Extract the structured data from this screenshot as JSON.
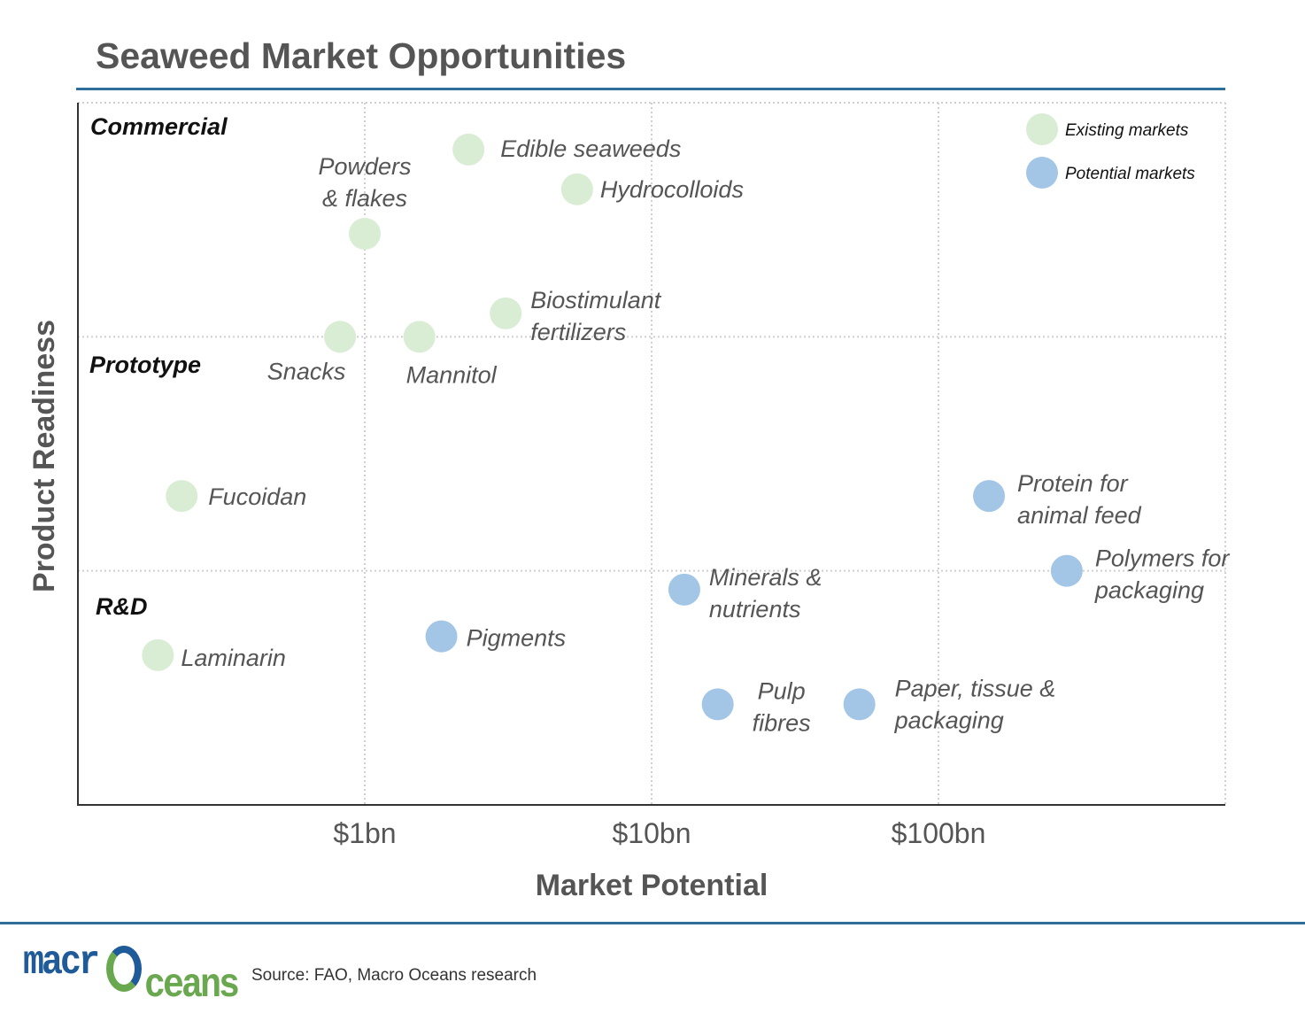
{
  "logo": {
    "part1": "macr",
    "part2": "ceans"
  },
  "source": "Source: FAO, Macro Oceans research",
  "chart_data": {
    "type": "scatter",
    "title": "Seaweed Market Opportunities",
    "xlabel": "Market Potential",
    "ylabel": "Product Readiness",
    "x_scale": "log",
    "x_ticks": [
      {
        "value": 1,
        "label": "$1bn"
      },
      {
        "value": 10,
        "label": "$10bn"
      },
      {
        "value": 100,
        "label": "$100bn"
      }
    ],
    "xlim": [
      0.1,
      1000
    ],
    "ylim": [
      0,
      3
    ],
    "bands": [
      {
        "label": "Commercial",
        "from": 2,
        "to": 3
      },
      {
        "label": "Prototype",
        "from": 1,
        "to": 2
      },
      {
        "label": "R&D",
        "from": 0,
        "to": 1
      }
    ],
    "grid": true,
    "legend": {
      "position": "top-right"
    },
    "colors": {
      "Existing markets": "#d9ecd4",
      "Potential markets": "#a4c6e6"
    },
    "series": [
      {
        "name": "Existing markets",
        "points": [
          {
            "label": "Edible seaweeds",
            "x": 2.3,
            "y": 2.8
          },
          {
            "label": "Hydrocolloids",
            "x": 5.5,
            "y": 2.63
          },
          {
            "label": "Powders & flakes",
            "lines": [
              "Powders",
              "& flakes"
            ],
            "x": 1.0,
            "y": 2.44
          },
          {
            "label": "Biostimulant fertilizers",
            "lines": [
              "Biostimulant",
              "fertilizers"
            ],
            "x": 3.1,
            "y": 2.1
          },
          {
            "label": "Snacks",
            "x": 0.82,
            "y": 2.0
          },
          {
            "label": "Mannitol",
            "x": 1.55,
            "y": 2.0
          },
          {
            "label": "Fucoidan",
            "x": 0.23,
            "y": 1.32
          },
          {
            "label": "Laminarin",
            "x": 0.19,
            "y": 0.64
          }
        ]
      },
      {
        "name": "Potential markets",
        "points": [
          {
            "label": "Protein for animal feed",
            "lines": [
              "Protein for",
              "animal feed"
            ],
            "x": 150,
            "y": 1.32
          },
          {
            "label": "Polymers for packaging",
            "lines": [
              "Polymers for",
              "packaging"
            ],
            "x": 280,
            "y": 1.0
          },
          {
            "label": "Minerals & nutrients",
            "lines": [
              "Minerals &",
              "nutrients"
            ],
            "x": 13,
            "y": 0.92
          },
          {
            "label": "Pigments",
            "x": 1.85,
            "y": 0.72
          },
          {
            "label": "Pulp fibres",
            "lines": [
              "Pulp",
              "fibres"
            ],
            "x": 17,
            "y": 0.43
          },
          {
            "label": "Paper, tissue & packaging",
            "lines": [
              "Paper, tissue &",
              "packaging"
            ],
            "x": 53,
            "y": 0.43
          }
        ]
      }
    ]
  }
}
